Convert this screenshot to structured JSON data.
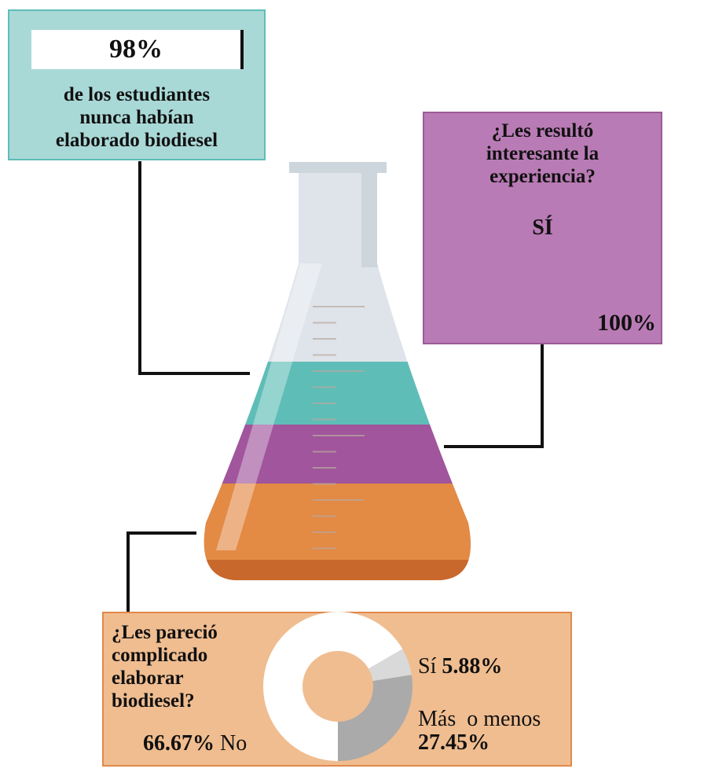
{
  "top_box": {
    "value": "98%",
    "text_lines": [
      "de los estudiantes",
      "nunca habían",
      "elaborado biodiesel"
    ]
  },
  "gauge_box": {
    "question_lines": [
      "¿Les resultó",
      "interesante la",
      "experiencia?"
    ],
    "label": "SÍ",
    "value_label": "100%",
    "value": 100
  },
  "donut_box": {
    "question_lines": [
      "¿Les pareció",
      "complicado",
      "elaborar",
      "biodiesel?"
    ],
    "no_value": "66.67%",
    "no_label": "No",
    "si_label": "Sí",
    "si_value": "5.88%",
    "mas_label": "Más  o menos",
    "mas_value": "27.45%"
  },
  "colors": {
    "teal": "#5fbdb7",
    "purple": "#a0559c",
    "orange": "#e38a45",
    "box_teal": "#a9d9d7",
    "box_purple": "#b97bb5",
    "box_orange": "#f0bd90"
  },
  "chart_data": {
    "type": "pie",
    "categories": [
      "No",
      "Sí",
      "Más o menos"
    ],
    "values": [
      66.67,
      5.88,
      27.45
    ],
    "colors": [
      "#ffffff",
      "#d9d9d9",
      "#aaaaaa"
    ]
  }
}
